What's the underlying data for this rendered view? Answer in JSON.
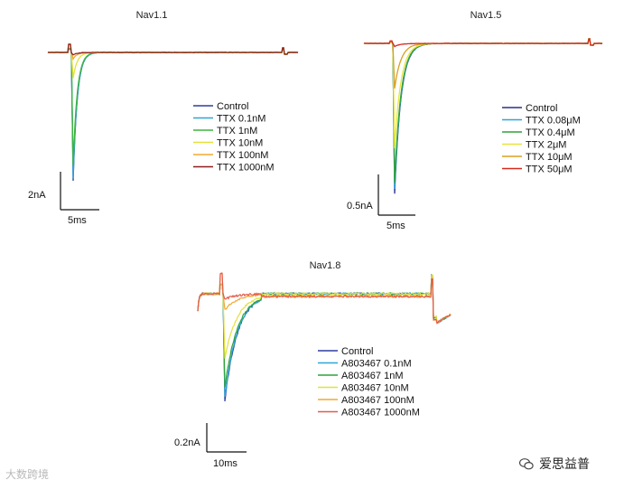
{
  "chart_data": [
    {
      "type": "line",
      "title": "Nav1.1",
      "scale_bar": {
        "y_label": "2nA",
        "x_label": "5ms"
      },
      "legend_placement": "right",
      "series": [
        {
          "name": "Control",
          "color": "#2b3f9e",
          "peak_rel": 1.0
        },
        {
          "name": "TTX 0.1nM",
          "color": "#2ea6d8",
          "peak_rel": 0.98
        },
        {
          "name": "TTX 1nM",
          "color": "#3cb53c",
          "peak_rel": 0.88
        },
        {
          "name": "TTX 10nM",
          "color": "#e3e03a",
          "peak_rel": 0.2
        },
        {
          "name": "TTX 100nM",
          "color": "#f0a830",
          "peak_rel": 0.05
        },
        {
          "name": "TTX 1000nM",
          "color": "#8e1e1e",
          "peak_rel": 0.02
        }
      ]
    },
    {
      "type": "line",
      "title": "Nav1.5",
      "scale_bar": {
        "y_label": "0.5nA",
        "x_label": "5ms"
      },
      "legend_placement": "right",
      "series": [
        {
          "name": "Control",
          "color": "#2b2f8e",
          "peak_rel": 1.0
        },
        {
          "name": "TTX 0.08μM",
          "color": "#2ea6d8",
          "peak_rel": 0.97
        },
        {
          "name": "TTX 0.4μM",
          "color": "#2fa33a",
          "peak_rel": 0.93
        },
        {
          "name": "TTX 2μM",
          "color": "#e8e43e",
          "peak_rel": 0.7
        },
        {
          "name": "TTX 10μM",
          "color": "#d9a020",
          "peak_rel": 0.3
        },
        {
          "name": "TTX 50μM",
          "color": "#d32a1e",
          "peak_rel": 0.02
        }
      ]
    },
    {
      "type": "line",
      "title": "Nav1.8",
      "scale_bar": {
        "y_label": "0.2nA",
        "x_label": "10ms"
      },
      "legend_placement": "right",
      "series": [
        {
          "name": "Control",
          "color": "#2b3f9e",
          "peak_rel": 1.0
        },
        {
          "name": "A803467 0.1nM",
          "color": "#2ea6d8",
          "peak_rel": 0.97
        },
        {
          "name": "A803467 1nM",
          "color": "#2fa33a",
          "peak_rel": 0.88
        },
        {
          "name": "A803467 10nM",
          "color": "#e3e03a",
          "peak_rel": 0.6
        },
        {
          "name": "A803467 100nM",
          "color": "#f0a830",
          "peak_rel": 0.15
        },
        {
          "name": "A803467 1000nM",
          "color": "#e45a4a",
          "peak_rel": 0.05
        }
      ]
    }
  ],
  "watermark": {
    "left": "大数跨境",
    "right": "爱思益普"
  }
}
